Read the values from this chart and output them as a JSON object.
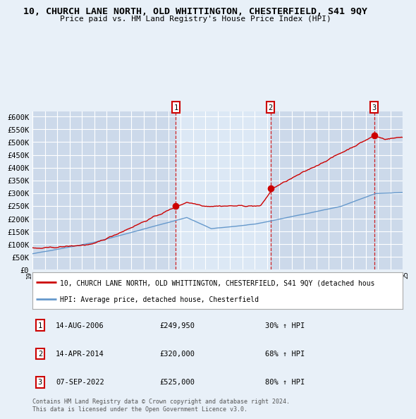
{
  "title": "10, CHURCH LANE NORTH, OLD WHITTINGTON, CHESTERFIELD, S41 9QY",
  "subtitle": "Price paid vs. HM Land Registry's House Price Index (HPI)",
  "background_color": "#e8f0f8",
  "plot_bg_color": "#ccd9ea",
  "grid_color": "#ffffff",
  "ylim": [
    0,
    620000
  ],
  "yticks": [
    0,
    50000,
    100000,
    150000,
    200000,
    250000,
    300000,
    350000,
    400000,
    450000,
    500000,
    550000,
    600000
  ],
  "ytick_labels": [
    "£0",
    "£50K",
    "£100K",
    "£150K",
    "£200K",
    "£250K",
    "£300K",
    "£350K",
    "£400K",
    "£450K",
    "£500K",
    "£550K",
    "£600K"
  ],
  "x_start_year": 1995,
  "x_end_year": 2025,
  "sale1_year": 2006.62,
  "sale1_price": 249950,
  "sale2_year": 2014.29,
  "sale2_price": 320000,
  "sale3_year": 2022.68,
  "sale3_price": 525000,
  "legend_property": "10, CHURCH LANE NORTH, OLD WHITTINGTON, CHESTERFIELD, S41 9QY (detached hous",
  "legend_hpi": "HPI: Average price, detached house, Chesterfield",
  "table_rows": [
    {
      "num": "1",
      "date": "14-AUG-2006",
      "price": "£249,950",
      "hpi": "30% ↑ HPI"
    },
    {
      "num": "2",
      "date": "14-APR-2014",
      "price": "£320,000",
      "hpi": "68% ↑ HPI"
    },
    {
      "num": "3",
      "date": "07-SEP-2022",
      "price": "£525,000",
      "hpi": "80% ↑ HPI"
    }
  ],
  "footer": "Contains HM Land Registry data © Crown copyright and database right 2024.\nThis data is licensed under the Open Government Licence v3.0.",
  "property_line_color": "#cc0000",
  "hpi_line_color": "#6699cc",
  "marker_box_color": "#cc0000",
  "highlight_bg": "#dce8f5"
}
